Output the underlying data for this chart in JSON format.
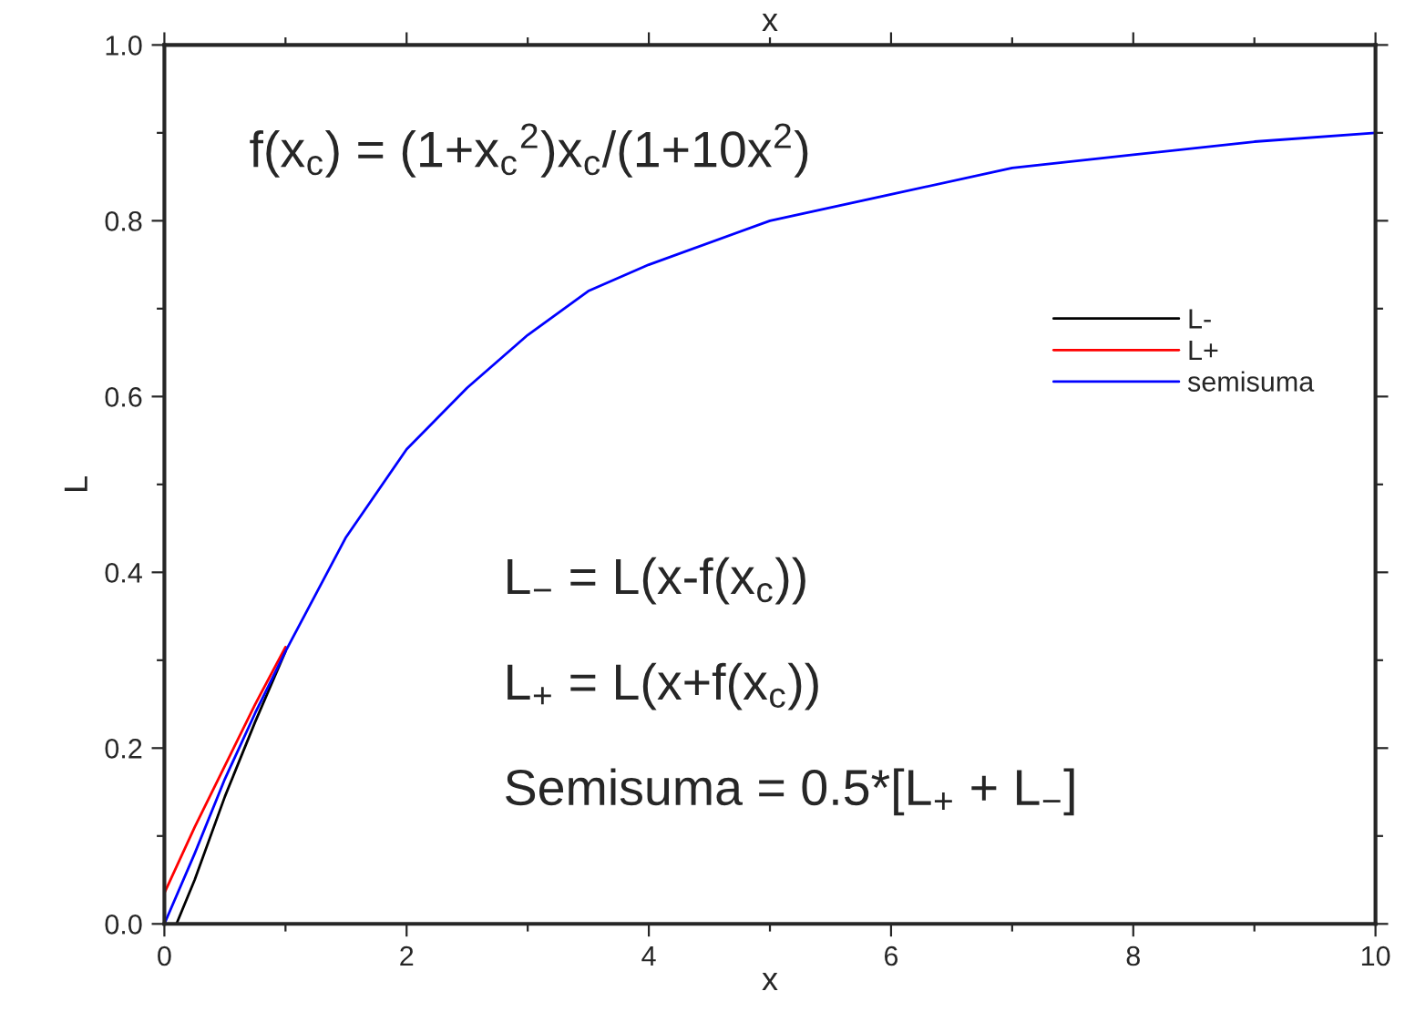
{
  "chart_data": {
    "type": "line",
    "xlabel": "x",
    "x2label": "x",
    "ylabel": "L",
    "series": [
      {
        "name": "L-",
        "color": "#000000",
        "x": [
          0.1,
          0.25,
          0.5,
          0.75,
          1
        ],
        "values": [
          0.0,
          0.05,
          0.145,
          0.23,
          0.31
        ]
      },
      {
        "name": "L+",
        "color": "#ff0000",
        "x": [
          0,
          0.25,
          0.5,
          0.75,
          1
        ],
        "values": [
          0.035,
          0.11,
          0.18,
          0.25,
          0.315
        ]
      },
      {
        "name": "semisuma",
        "color": "#0000ff",
        "x": [
          0,
          0.25,
          0.5,
          0.75,
          1,
          1.5,
          2,
          2.5,
          3,
          3.5,
          4,
          5,
          6,
          7,
          8,
          9,
          10
        ],
        "values": [
          0.0,
          0.08,
          0.165,
          0.24,
          0.31,
          0.44,
          0.54,
          0.61,
          0.67,
          0.72,
          0.75,
          0.8,
          0.83,
          0.86,
          0.875,
          0.89,
          0.9
        ]
      }
    ],
    "xlim": [
      0,
      10
    ],
    "ylim": [
      0,
      1.0
    ],
    "xticks": [
      0,
      {
        "value": 1,
        "label": null
      },
      2,
      {
        "value": 3,
        "label": null
      },
      4,
      {
        "value": 5,
        "label": null
      },
      6,
      {
        "value": 7,
        "label": null
      },
      8,
      {
        "value": 9,
        "label": null
      },
      10
    ],
    "yticks": [
      {
        "value": 0,
        "label": "0.0"
      },
      {
        "value": 0.1,
        "label": null
      },
      {
        "value": 0.2,
        "label": "0.2"
      },
      {
        "value": 0.3,
        "label": null
      },
      {
        "value": 0.4,
        "label": "0.4"
      },
      {
        "value": 0.5,
        "label": null
      },
      {
        "value": 0.6,
        "label": "0.6"
      },
      {
        "value": 0.7,
        "label": null
      },
      {
        "value": 0.8,
        "label": "0.8"
      },
      {
        "value": 0.9,
        "label": null
      },
      {
        "value": 1.0,
        "label": "1.0"
      }
    ],
    "annotations": [
      "f(x$_{c}$) = (1+x$_{c}$$^{2}$)x$_{c}$/(1+10x$^{2}$)",
      "L$_{−}$ = L(x-f(x$_{c}$))",
      "L$_{+}$ = L(x+f(x$_{c}$))",
      "Semisuma = 0.5*[L$_{+}$ + L$_{−}$]"
    ],
    "legend": "right",
    "grid": false,
    "marker": "none",
    "line_style": "solid"
  }
}
